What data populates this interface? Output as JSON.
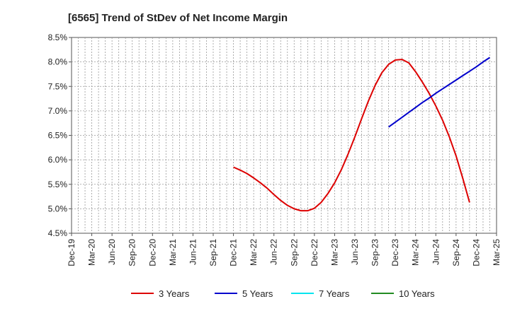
{
  "chart_data": {
    "type": "line",
    "title": "[6565]  Trend of StDev of Net Income Margin",
    "xlabel": "",
    "ylabel": "",
    "x_ticks": [
      "Dec-19",
      "Mar-20",
      "Jun-20",
      "Sep-20",
      "Dec-20",
      "Mar-21",
      "Jun-21",
      "Sep-21",
      "Dec-21",
      "Mar-22",
      "Jun-22",
      "Sep-22",
      "Dec-22",
      "Mar-23",
      "Jun-23",
      "Sep-23",
      "Dec-23",
      "Mar-24",
      "Jun-24",
      "Sep-24",
      "Dec-24",
      "Mar-25"
    ],
    "y_ticks": [
      "8.5%",
      "8.0%",
      "7.5%",
      "7.0%",
      "6.5%",
      "6.0%",
      "5.5%",
      "5.0%",
      "4.5%"
    ],
    "ylim": [
      4.5,
      8.5
    ],
    "grid": true,
    "legend_position": "bottom",
    "series": [
      {
        "name": "3 Years",
        "color": "#dd0000",
        "points": [
          [
            "Dec-21",
            5.85
          ],
          [
            "Jan-22",
            5.79
          ],
          [
            "Feb-22",
            5.72
          ],
          [
            "Mar-22",
            5.63
          ],
          [
            "Apr-22",
            5.53
          ],
          [
            "May-22",
            5.42
          ],
          [
            "Jun-22",
            5.29
          ],
          [
            "Jul-22",
            5.17
          ],
          [
            "Aug-22",
            5.07
          ],
          [
            "Sep-22",
            5.0
          ],
          [
            "Oct-22",
            4.96
          ],
          [
            "Nov-22",
            4.96
          ],
          [
            "Dec-22",
            5.01
          ],
          [
            "Jan-23",
            5.13
          ],
          [
            "Feb-23",
            5.31
          ],
          [
            "Mar-23",
            5.53
          ],
          [
            "Apr-23",
            5.8
          ],
          [
            "May-23",
            6.12
          ],
          [
            "Jun-23",
            6.47
          ],
          [
            "Jul-23",
            6.84
          ],
          [
            "Aug-23",
            7.2
          ],
          [
            "Sep-23",
            7.52
          ],
          [
            "Oct-23",
            7.78
          ],
          [
            "Nov-23",
            7.95
          ],
          [
            "Dec-23",
            8.04
          ],
          [
            "Jan-24",
            8.05
          ],
          [
            "Feb-24",
            7.98
          ],
          [
            "Mar-24",
            7.8
          ],
          [
            "Apr-24",
            7.59
          ],
          [
            "May-24",
            7.36
          ],
          [
            "Jun-24",
            7.1
          ],
          [
            "Jul-24",
            6.81
          ],
          [
            "Aug-24",
            6.47
          ],
          [
            "Sep-24",
            6.08
          ],
          [
            "Oct-24",
            5.62
          ],
          [
            "Nov-24",
            5.13
          ]
        ]
      },
      {
        "name": "5 Years",
        "color": "#0000cc",
        "points": [
          [
            "Nov-23",
            6.67
          ],
          [
            "Dec-23",
            6.77
          ],
          [
            "Jan-24",
            6.87
          ],
          [
            "Feb-24",
            6.97
          ],
          [
            "Mar-24",
            7.07
          ],
          [
            "Apr-24",
            7.17
          ],
          [
            "May-24",
            7.26
          ],
          [
            "Jun-24",
            7.36
          ],
          [
            "Jul-24",
            7.45
          ],
          [
            "Aug-24",
            7.54
          ],
          [
            "Sep-24",
            7.63
          ],
          [
            "Oct-24",
            7.72
          ],
          [
            "Nov-24",
            7.81
          ],
          [
            "Dec-24",
            7.9
          ],
          [
            "Jan-25",
            8.0
          ],
          [
            "Feb-25",
            8.09
          ]
        ]
      },
      {
        "name": "7 Years",
        "color": "#00e5ee",
        "points": []
      },
      {
        "name": "10 Years",
        "color": "#228b22",
        "points": []
      }
    ]
  }
}
